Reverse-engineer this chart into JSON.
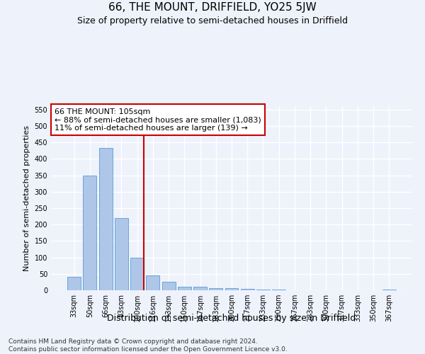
{
  "title": "66, THE MOUNT, DRIFFIELD, YO25 5JW",
  "subtitle": "Size of property relative to semi-detached houses in Driffield",
  "xlabel": "Distribution of semi-detached houses by size in Driffield",
  "ylabel": "Number of semi-detached properties",
  "categories": [
    "33sqm",
    "50sqm",
    "66sqm",
    "83sqm",
    "100sqm",
    "116sqm",
    "133sqm",
    "150sqm",
    "167sqm",
    "183sqm",
    "200sqm",
    "217sqm",
    "233sqm",
    "250sqm",
    "267sqm",
    "283sqm",
    "300sqm",
    "317sqm",
    "333sqm",
    "350sqm",
    "367sqm"
  ],
  "values": [
    40,
    350,
    432,
    220,
    100,
    45,
    25,
    10,
    10,
    6,
    6,
    4,
    2,
    2,
    1,
    1,
    0,
    1,
    0,
    1,
    2
  ],
  "bar_color": "#aec6e8",
  "bar_edge_color": "#5b9bd5",
  "vline_x_index": 4,
  "vline_color": "#cc0000",
  "annotation_line1": "66 THE MOUNT: 105sqm",
  "annotation_line2": "← 88% of semi-detached houses are smaller (1,083)",
  "annotation_line3": "11% of semi-detached houses are larger (139) →",
  "annotation_box_color": "#ffffff",
  "annotation_box_edge": "#cc0000",
  "ylim": [
    0,
    560
  ],
  "yticks": [
    0,
    50,
    100,
    150,
    200,
    250,
    300,
    350,
    400,
    450,
    500,
    550
  ],
  "footer": "Contains HM Land Registry data © Crown copyright and database right 2024.\nContains public sector information licensed under the Open Government Licence v3.0.",
  "background_color": "#eef2fb",
  "grid_color": "#ffffff",
  "title_fontsize": 11,
  "subtitle_fontsize": 9,
  "xlabel_fontsize": 9,
  "ylabel_fontsize": 8,
  "tick_fontsize": 7,
  "annotation_fontsize": 8,
  "footer_fontsize": 6.5
}
